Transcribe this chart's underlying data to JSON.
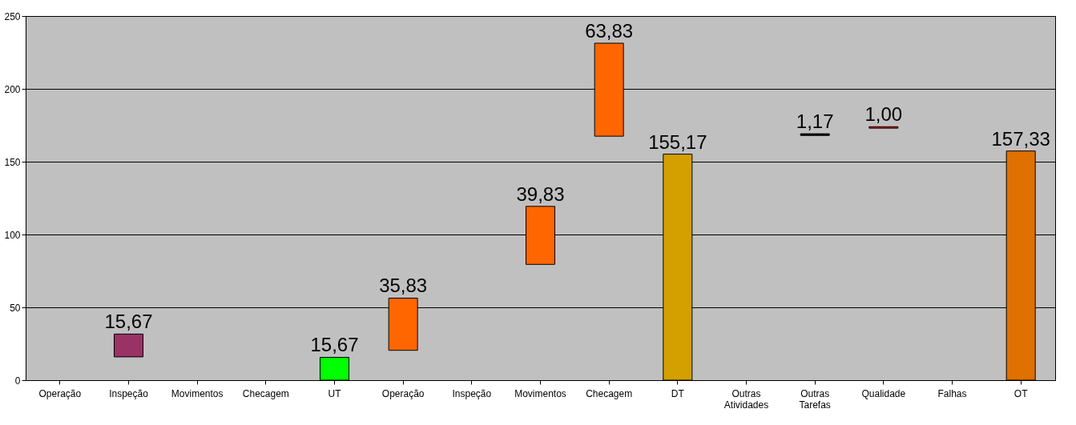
{
  "chart_data": {
    "type": "bar",
    "categories": [
      "Operação",
      "Inspeção",
      "Movimentos",
      "Checagem",
      "UT",
      "Operação",
      "Inspeção",
      "Movimentos",
      "Checagem",
      "DT",
      "Outras Atividades",
      "Outras Tarefas",
      "Qualidade",
      "Falhas",
      "OT"
    ],
    "values": [
      null,
      15.67,
      null,
      null,
      15.67,
      35.83,
      null,
      39.83,
      63.83,
      155.17,
      null,
      1.17,
      1.0,
      null,
      157.33
    ],
    "base": [
      null,
      16,
      null,
      null,
      0,
      20.5,
      null,
      79.5,
      167.5,
      0,
      null,
      168,
      173,
      null,
      0
    ],
    "colors": [
      "#999999",
      "#993366",
      "#999999",
      "#999999",
      "#00ff00",
      "#ff6600",
      "#999999",
      "#ff6600",
      "#ff6600",
      "#d4a000",
      "#999999",
      "#000000",
      "#ff0000",
      "#999999",
      "#e07000"
    ],
    "value_labels": [
      null,
      "15,67",
      null,
      null,
      "15,67",
      "35,83",
      null,
      "39,83",
      "63,83",
      "155,17",
      null,
      "1,17",
      "1,00",
      null,
      "157,33"
    ],
    "ylim": [
      0,
      250
    ],
    "yticks": [
      0,
      50,
      100,
      150,
      200,
      250
    ],
    "grid": "y"
  }
}
